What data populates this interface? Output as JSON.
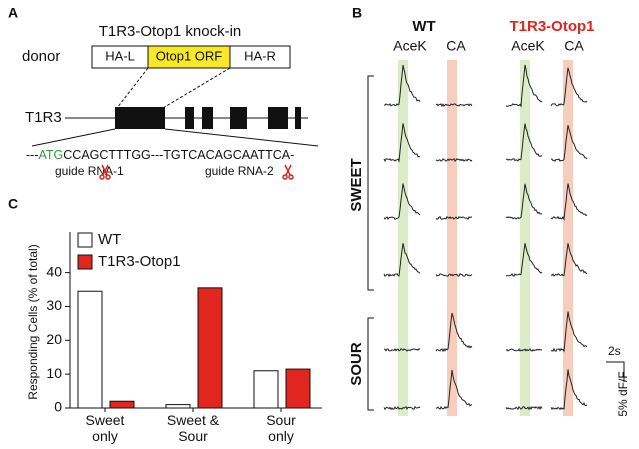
{
  "panel_a": {
    "label": "A",
    "title": "T1R3-Otop1 knock-in",
    "donor_label": "donor",
    "donor_segments": [
      "HA-L",
      "Otop1 ORF",
      "HA-R"
    ],
    "gene_label": "T1R3",
    "sequence": {
      "prefix": "---",
      "start_codon": "ATG",
      "rest": "CCAGCTTTGG---TGTCACAGCAATTCA-"
    },
    "guides": [
      "guide RNA-1",
      "guide RNA-2"
    ]
  },
  "panel_b": {
    "label": "B",
    "groups": [
      "WT",
      "T1R3-Otop1"
    ],
    "stimuli": [
      "AceK",
      "CA"
    ],
    "row_groups": [
      "SWEET",
      "SOUR"
    ],
    "scale_time": "2s",
    "scale_signal": "5% dF/F"
  },
  "panel_c_label": "C",
  "chart_data": {
    "type": "bar",
    "y_label": "Responding Cells (% of total)",
    "categories": [
      "Sweet only",
      "Sweet & Sour",
      "Sour only"
    ],
    "series": [
      {
        "name": "WT",
        "color": "#ffffff",
        "values": [
          34.5,
          1,
          11
        ]
      },
      {
        "name": "T1R3-Otop1",
        "color": "#e0261f",
        "values": [
          2,
          35.5,
          11.5
        ]
      }
    ],
    "ylim": [
      0,
      52
    ],
    "yticks": [
      0,
      10,
      20,
      30,
      40
    ],
    "grid": false
  }
}
